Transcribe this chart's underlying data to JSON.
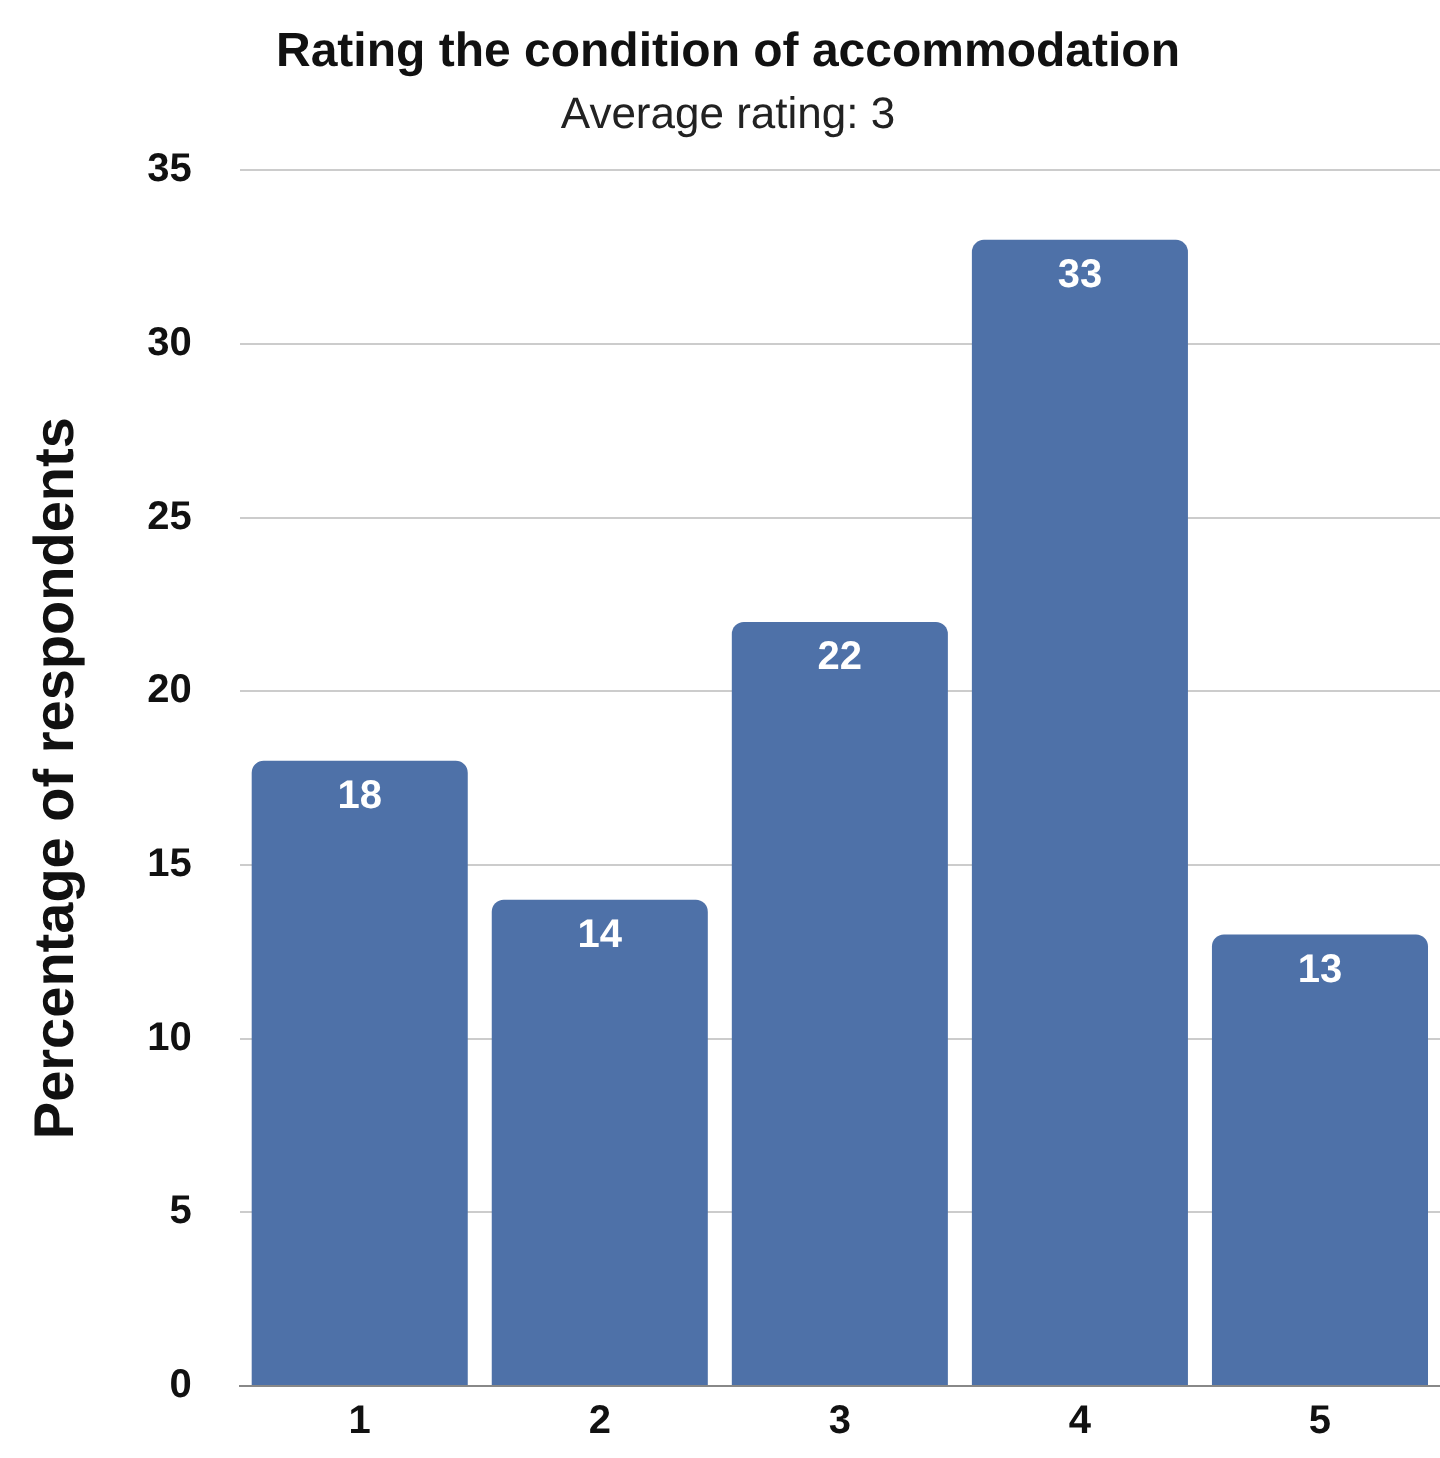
{
  "chart_data": {
    "type": "bar",
    "title": "Rating the condition of accommodation",
    "subtitle": "Average rating: 3",
    "ylabel": "Percentage of respondents",
    "categories": [
      "1",
      "2",
      "3",
      "4",
      "5"
    ],
    "values": [
      18,
      14,
      22,
      33,
      13
    ],
    "color": "#4e71a8",
    "ylim": [
      0,
      35
    ],
    "yticks": [
      0,
      5,
      10,
      15,
      20,
      25,
      30,
      35
    ],
    "grid": "y",
    "data_labels": true,
    "legend": false
  }
}
